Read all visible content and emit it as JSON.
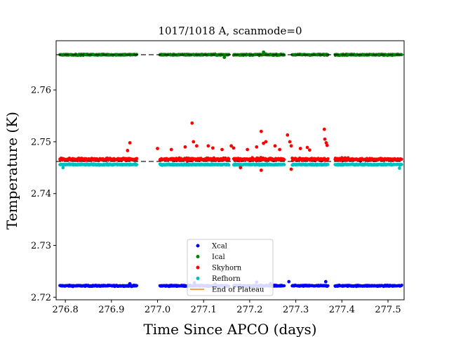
{
  "chart_data": {
    "type": "scatter",
    "title": "1017/1018 A, scanmode=0",
    "xlabel": "Time Since APCO (days)",
    "ylabel": "Temperature (K)",
    "xlim": [
      276.78,
      277.535
    ],
    "ylim": [
      2.7195,
      2.7695
    ],
    "xticks": [
      276.8,
      276.9,
      277.0,
      277.1,
      277.2,
      277.3,
      277.4,
      277.5
    ],
    "xtick_labels": [
      "276.8",
      "276.9",
      "277.0",
      "277.1",
      "277.2",
      "277.3",
      "277.4",
      "277.5"
    ],
    "yticks": [
      2.72,
      2.73,
      2.74,
      2.75,
      2.76
    ],
    "ytick_labels": [
      "2.72",
      "2.73",
      "2.74",
      "2.75",
      "2.76"
    ],
    "grid": false,
    "legend_position": "lower-center",
    "segments": [
      [
        276.788,
        276.955
      ],
      [
        277.005,
        277.155
      ],
      [
        277.165,
        277.275
      ],
      [
        277.292,
        277.37
      ],
      [
        277.385,
        277.53
      ]
    ],
    "series": [
      {
        "name": "Xcal",
        "color": "#0000ff",
        "marker": "point",
        "level": 2.7222,
        "noise": 0.00012,
        "points": [
          [
            277.08,
            2.7228
          ],
          [
            277.125,
            2.7225
          ],
          [
            277.215,
            2.7229
          ],
          [
            277.245,
            2.7226
          ],
          [
            277.285,
            2.723
          ],
          [
            277.365,
            2.723
          ],
          [
            276.94,
            2.7226
          ]
        ]
      },
      {
        "name": "Ical",
        "color": "#008000",
        "marker": "point",
        "level": 2.7668,
        "noise": 0.00012,
        "points": [
          [
            277.23,
            2.7673
          ],
          [
            277.145,
            2.7663
          ]
        ]
      },
      {
        "name": "Skyhorn",
        "color": "#ff0000",
        "marker": "point",
        "level": 2.7466,
        "noise": 0.00025,
        "points": [
          [
            276.94,
            2.7498
          ],
          [
            276.935,
            2.7483
          ],
          [
            277.0,
            2.7487
          ],
          [
            277.03,
            2.7485
          ],
          [
            277.06,
            2.749
          ],
          [
            277.075,
            2.7536
          ],
          [
            277.078,
            2.75
          ],
          [
            277.085,
            2.7492
          ],
          [
            277.11,
            2.7492
          ],
          [
            277.12,
            2.7488
          ],
          [
            277.14,
            2.7485
          ],
          [
            277.16,
            2.7492
          ],
          [
            277.165,
            2.7488
          ],
          [
            277.195,
            2.7485
          ],
          [
            277.215,
            2.749
          ],
          [
            277.225,
            2.752
          ],
          [
            277.23,
            2.7497
          ],
          [
            277.235,
            2.75
          ],
          [
            277.255,
            2.7492
          ],
          [
            277.265,
            2.7485
          ],
          [
            277.282,
            2.7513
          ],
          [
            277.287,
            2.75
          ],
          [
            277.29,
            2.7492
          ],
          [
            277.31,
            2.7487
          ],
          [
            277.325,
            2.7489
          ],
          [
            277.33,
            2.7484
          ],
          [
            277.362,
            2.7524
          ],
          [
            277.363,
            2.7505
          ],
          [
            277.366,
            2.7498
          ],
          [
            277.368,
            2.7493
          ],
          [
            277.225,
            2.7445
          ],
          [
            277.29,
            2.7447
          ],
          [
            277.18,
            2.745
          ]
        ]
      },
      {
        "name": "Refhorn",
        "color": "#00bfbf",
        "marker": "point",
        "level": 2.7456,
        "noise": 0.00012,
        "points": [
          [
            276.795,
            2.745
          ],
          [
            277.525,
            2.7449
          ]
        ]
      },
      {
        "name": "End of Plateau",
        "color": "#ff7f0e",
        "marker": "line",
        "points": []
      }
    ]
  }
}
